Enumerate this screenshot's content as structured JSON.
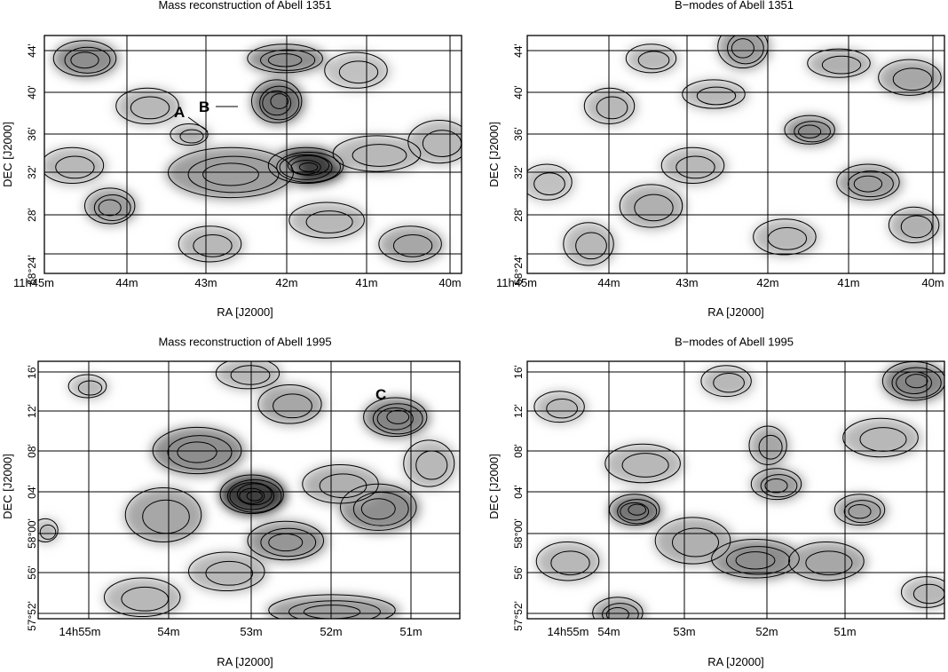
{
  "panels": [
    {
      "title": "Mass reconstruction of Abell 1351",
      "xlabel": "RA [J2000]",
      "ylabel": "DEC [J2000]",
      "xticks": [
        "11h45m",
        "44m",
        "43m",
        "42m",
        "41m",
        "40m"
      ],
      "yticks": [
        "58°24'",
        "28'",
        "32'",
        "36'",
        "40'",
        "44'"
      ],
      "annotations": [
        "A",
        "B"
      ]
    },
    {
      "title": "B−modes of Abell 1351",
      "xlabel": "RA [J2000]",
      "ylabel": "DEC [J2000]",
      "xticks": [
        "11h45m",
        "44m",
        "43m",
        "42m",
        "41m",
        "40m"
      ],
      "yticks": [
        "58°24'",
        "28'",
        "32'",
        "36'",
        "40'",
        "44'"
      ],
      "annotations": []
    },
    {
      "title": "Mass reconstruction of Abell 1995",
      "xlabel": "RA [J2000]",
      "ylabel": "DEC [J2000]",
      "xticks": [
        "14h55m",
        "54m",
        "53m",
        "52m",
        "51m"
      ],
      "yticks": [
        "57°52'",
        "56'",
        "58°00'",
        "04'",
        "08'",
        "12'",
        "16'"
      ],
      "annotations": [
        "C"
      ]
    },
    {
      "title": "B−modes of Abell 1995",
      "xlabel": "RA [J2000]",
      "ylabel": "DEC [J2000]",
      "xticks": [
        "14h55m",
        "54m",
        "53m",
        "52m",
        "51m"
      ],
      "yticks": [
        "57°52'",
        "56'",
        "58°00'",
        "04'",
        "08'",
        "12'",
        "16'"
      ],
      "annotations": []
    }
  ],
  "chart_data": [
    {
      "type": "heatmap",
      "title": "Mass reconstruction of Abell 1351",
      "xlabel": "RA [J2000]",
      "ylabel": "DEC [J2000]",
      "xlim": [
        "11h45m",
        "11h40m"
      ],
      "ylim": [
        "58°23'",
        "58°45'"
      ],
      "grid": true,
      "peaks": [
        {
          "ra": "42.35m",
          "dec": "31.5'",
          "level": 1.0
        },
        {
          "ra": "42.5m",
          "dec": "38.5'",
          "level": 0.7
        },
        {
          "ra": "44.7m",
          "dec": "43.5'",
          "level": 0.55
        },
        {
          "ra": "42.3m",
          "dec": "43'",
          "level": 0.55
        },
        {
          "ra": "44.3m",
          "dec": "29'",
          "level": 0.45
        },
        {
          "ra": "43.3m",
          "dec": "36'",
          "level": 0.35
        },
        {
          "ra": "40.5m",
          "dec": "25.5'",
          "level": 0.4
        }
      ],
      "markers": [
        {
          "label": "A"
        },
        {
          "label": "B"
        }
      ]
    },
    {
      "type": "heatmap",
      "title": "B−modes of Abell 1351",
      "xlabel": "RA [J2000]",
      "ylabel": "DEC [J2000]",
      "xlim": [
        "11h45m",
        "11h40m"
      ],
      "ylim": [
        "58°23'",
        "58°45'"
      ],
      "grid": true,
      "peaks": [
        {
          "ra": "41.6m",
          "dec": "35.7'",
          "level": 0.55
        },
        {
          "ra": "40.9m",
          "dec": "30.5'",
          "level": 0.45
        },
        {
          "ra": "42.3m",
          "dec": "44'",
          "level": 0.45
        },
        {
          "ra": "40.4m",
          "dec": "43'",
          "level": 0.4
        },
        {
          "ra": "43.8m",
          "dec": "28'",
          "level": 0.35
        }
      ]
    },
    {
      "type": "heatmap",
      "title": "Mass reconstruction of Abell 1995",
      "xlabel": "RA [J2000]",
      "ylabel": "DEC [J2000]",
      "xlim": [
        "14h55.5m",
        "14h50.5m"
      ],
      "ylim": [
        "57°51'",
        "58°17'"
      ],
      "grid": true,
      "peaks": [
        {
          "ra": "53.0m",
          "dec": "58°02'",
          "level": 1.0
        },
        {
          "ra": "51.5m",
          "dec": "58°12'",
          "level": 0.6
        },
        {
          "ra": "53.5m",
          "dec": "58°08'",
          "level": 0.55
        },
        {
          "ra": "51.7m",
          "dec": "58°00'",
          "level": 0.55
        },
        {
          "ra": "52.7m",
          "dec": "57°57'",
          "level": 0.5
        },
        {
          "ra": "52.0m",
          "dec": "57°52'",
          "level": 0.45
        }
      ],
      "markers": [
        {
          "label": "C"
        }
      ]
    },
    {
      "type": "heatmap",
      "title": "B−modes of Abell 1995",
      "xlabel": "RA [J2000]",
      "ylabel": "DEC [J2000]",
      "xlim": [
        "14h55.5m",
        "14h50.5m"
      ],
      "ylim": [
        "57°51'",
        "58°17'"
      ],
      "grid": true,
      "peaks": [
        {
          "ra": "54.3m",
          "dec": "58°01'",
          "level": 0.7
        },
        {
          "ra": "50.9m",
          "dec": "58°14'",
          "level": 0.6
        },
        {
          "ra": "52.5m",
          "dec": "57°55'",
          "level": 0.55
        },
        {
          "ra": "52.2m",
          "dec": "58°03'",
          "level": 0.45
        },
        {
          "ra": "54.5m",
          "dec": "57°52'",
          "level": 0.45
        },
        {
          "ra": "51.4m",
          "dec": "58°01'",
          "level": 0.45
        }
      ]
    }
  ]
}
